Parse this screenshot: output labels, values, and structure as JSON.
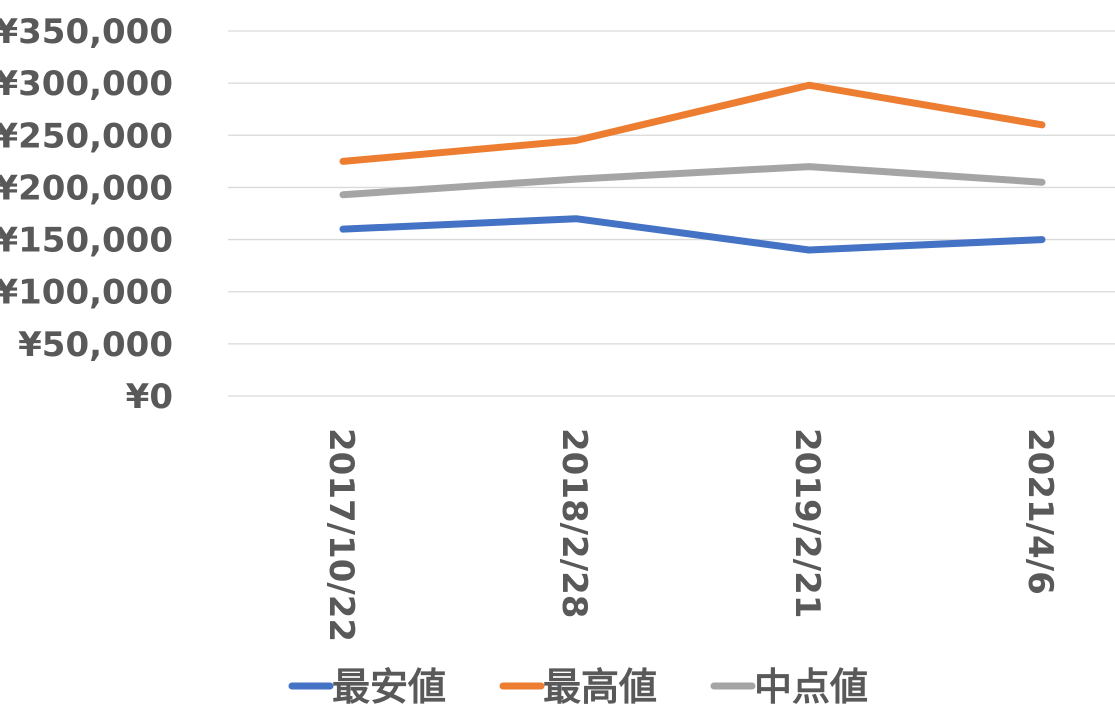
{
  "chart_data": {
    "type": "line",
    "title": "",
    "xlabel": "",
    "ylabel": "",
    "categories": [
      "2017/10/22",
      "2018/2/28",
      "2019/2/21",
      "2021/4/6"
    ],
    "y_ticks": [
      0,
      50000,
      100000,
      150000,
      200000,
      250000,
      300000,
      350000
    ],
    "y_tick_labels": [
      "¥0",
      "¥50,000",
      "¥100,000",
      "¥150,000",
      "¥200,000",
      "¥250,000",
      "¥300,000",
      "¥350,000"
    ],
    "ylim": [
      0,
      350000
    ],
    "grid": true,
    "legend_position": "bottom",
    "series": [
      {
        "name": "最安値",
        "color": "#4472C4",
        "values": [
          160000,
          170000,
          140000,
          150000
        ]
      },
      {
        "name": "最高値",
        "color": "#ED7D31",
        "values": [
          225000,
          245000,
          298000,
          260000
        ]
      },
      {
        "name": "中点値",
        "color": "#A5A5A5",
        "values": [
          193000,
          208000,
          220000,
          205000
        ]
      }
    ]
  }
}
